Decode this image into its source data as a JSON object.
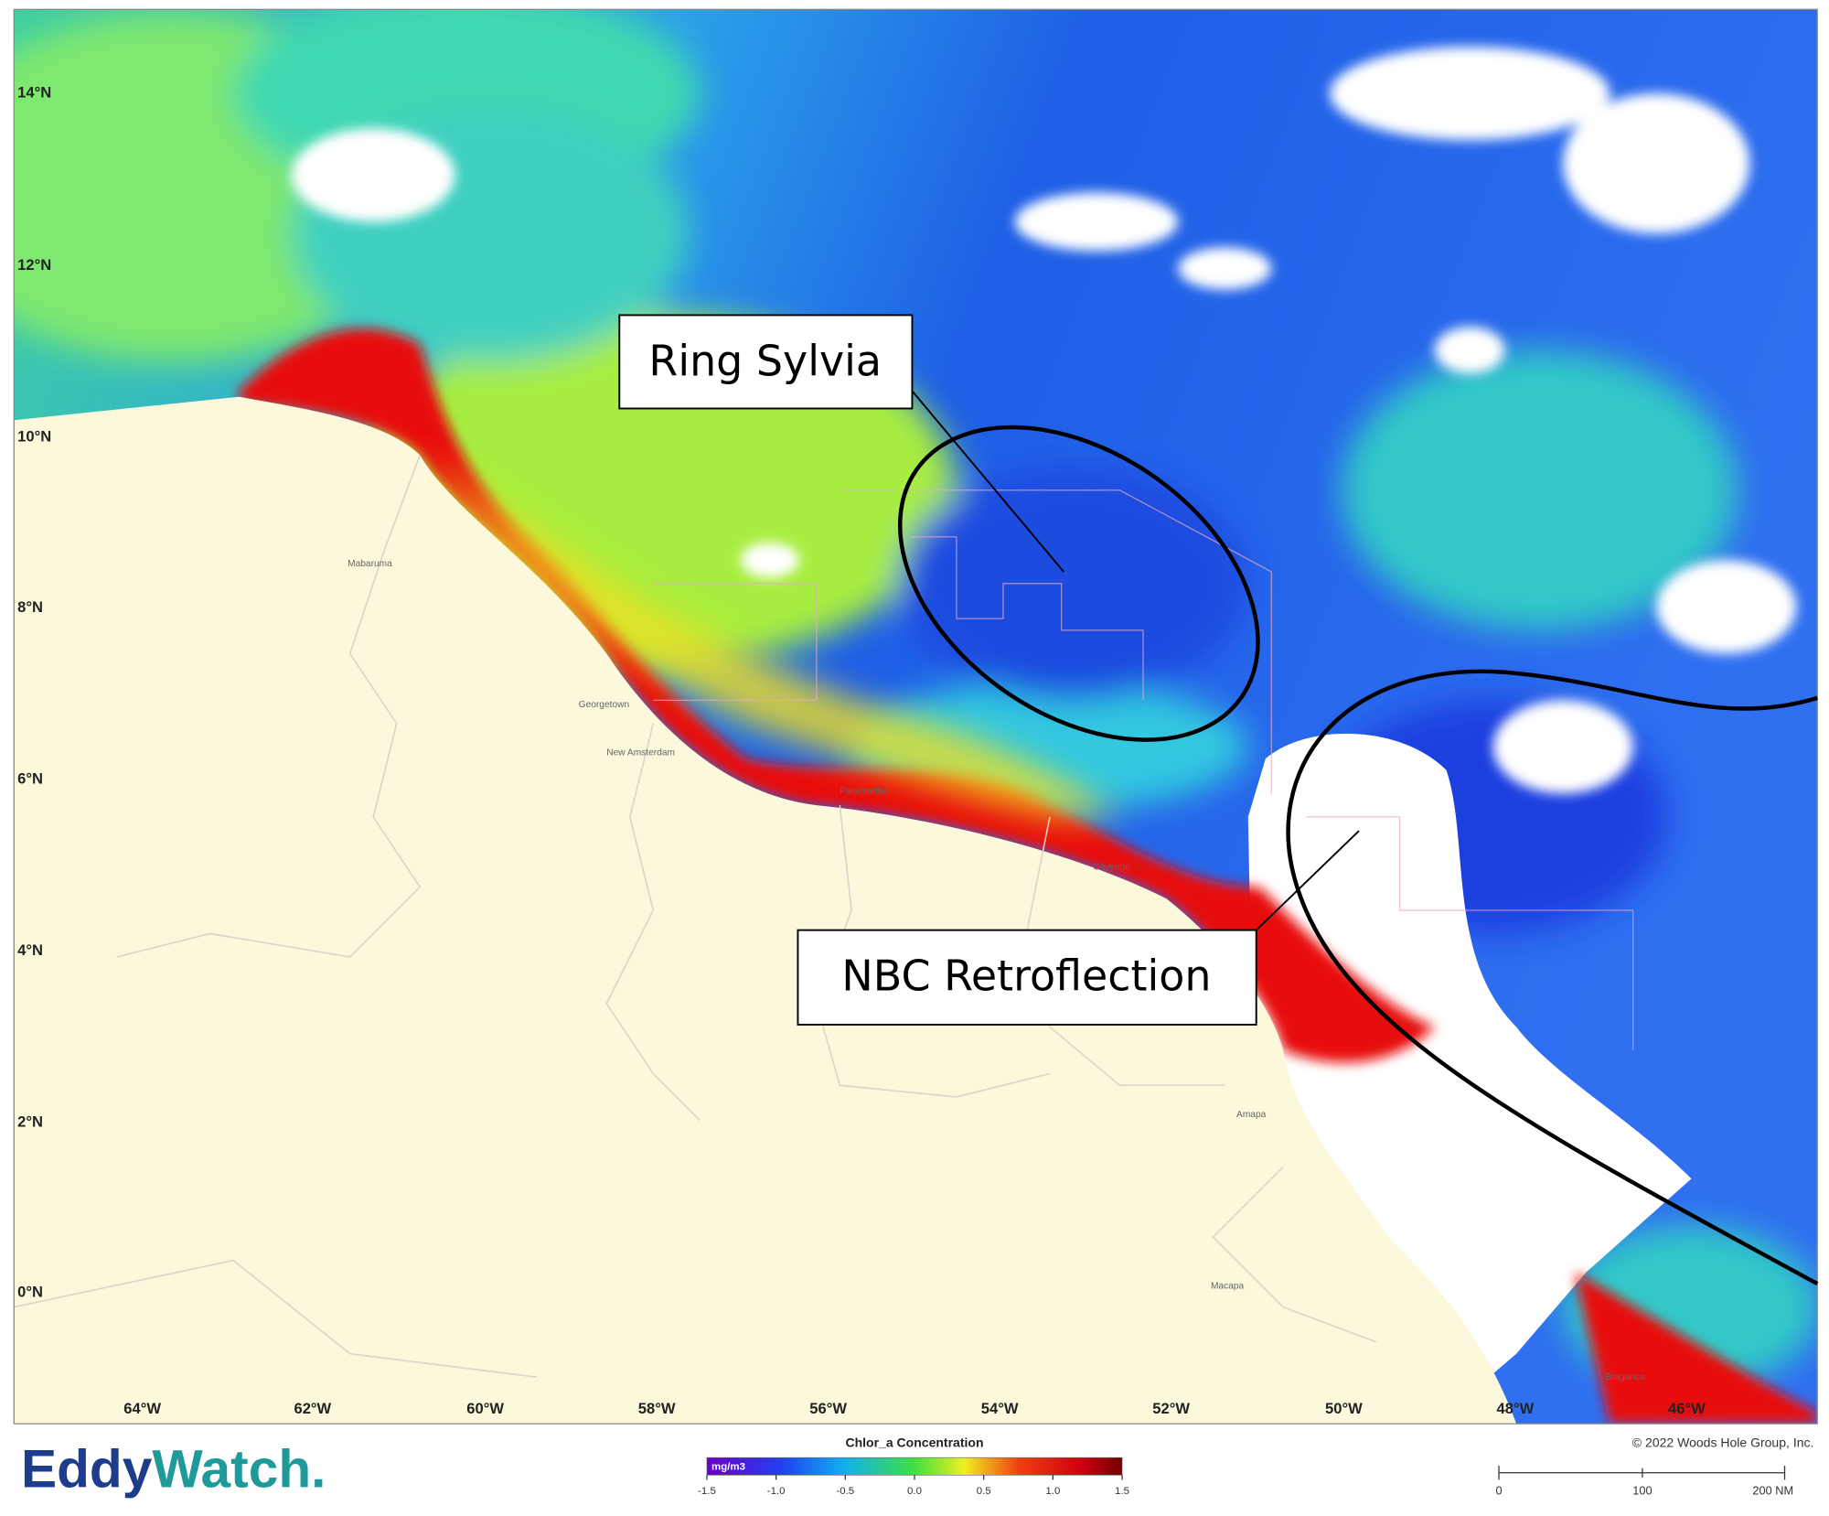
{
  "map": {
    "lat_labels": [
      "14°N",
      "12°N",
      "10°N",
      "8°N",
      "6°N",
      "4°N",
      "2°N",
      "0°N"
    ],
    "lon_labels": [
      "64°W",
      "62°W",
      "60°W",
      "58°W",
      "56°W",
      "54°W",
      "52°W",
      "50°W",
      "48°W",
      "46°W"
    ],
    "places": [
      "Mabaruma",
      "Georgetown",
      "New Amsterdam",
      "Paramaribo",
      "Cayenne",
      "Amapa",
      "Macapa",
      "Braganca"
    ]
  },
  "callouts": [
    "Ring Sylvia",
    "NBC Retroflection"
  ],
  "logo": {
    "eddy": "Eddy",
    "watch": "Watch."
  },
  "colorbar": {
    "title": "Chlor_a Concentration",
    "unit": "mg/m3",
    "ticks": [
      -1.5,
      {
        "value": -1,
        "label": "-1.0"
      },
      -0.5,
      {
        "value": 0,
        "label": "0.0"
      },
      0.5,
      {
        "value": 1,
        "label": "1.0"
      },
      1.5
    ]
  },
  "copyright": "© 2022 Woods Hole Group, Inc.",
  "scale_bar": {
    "labels": [
      "0",
      "100",
      "200 NM"
    ]
  }
}
